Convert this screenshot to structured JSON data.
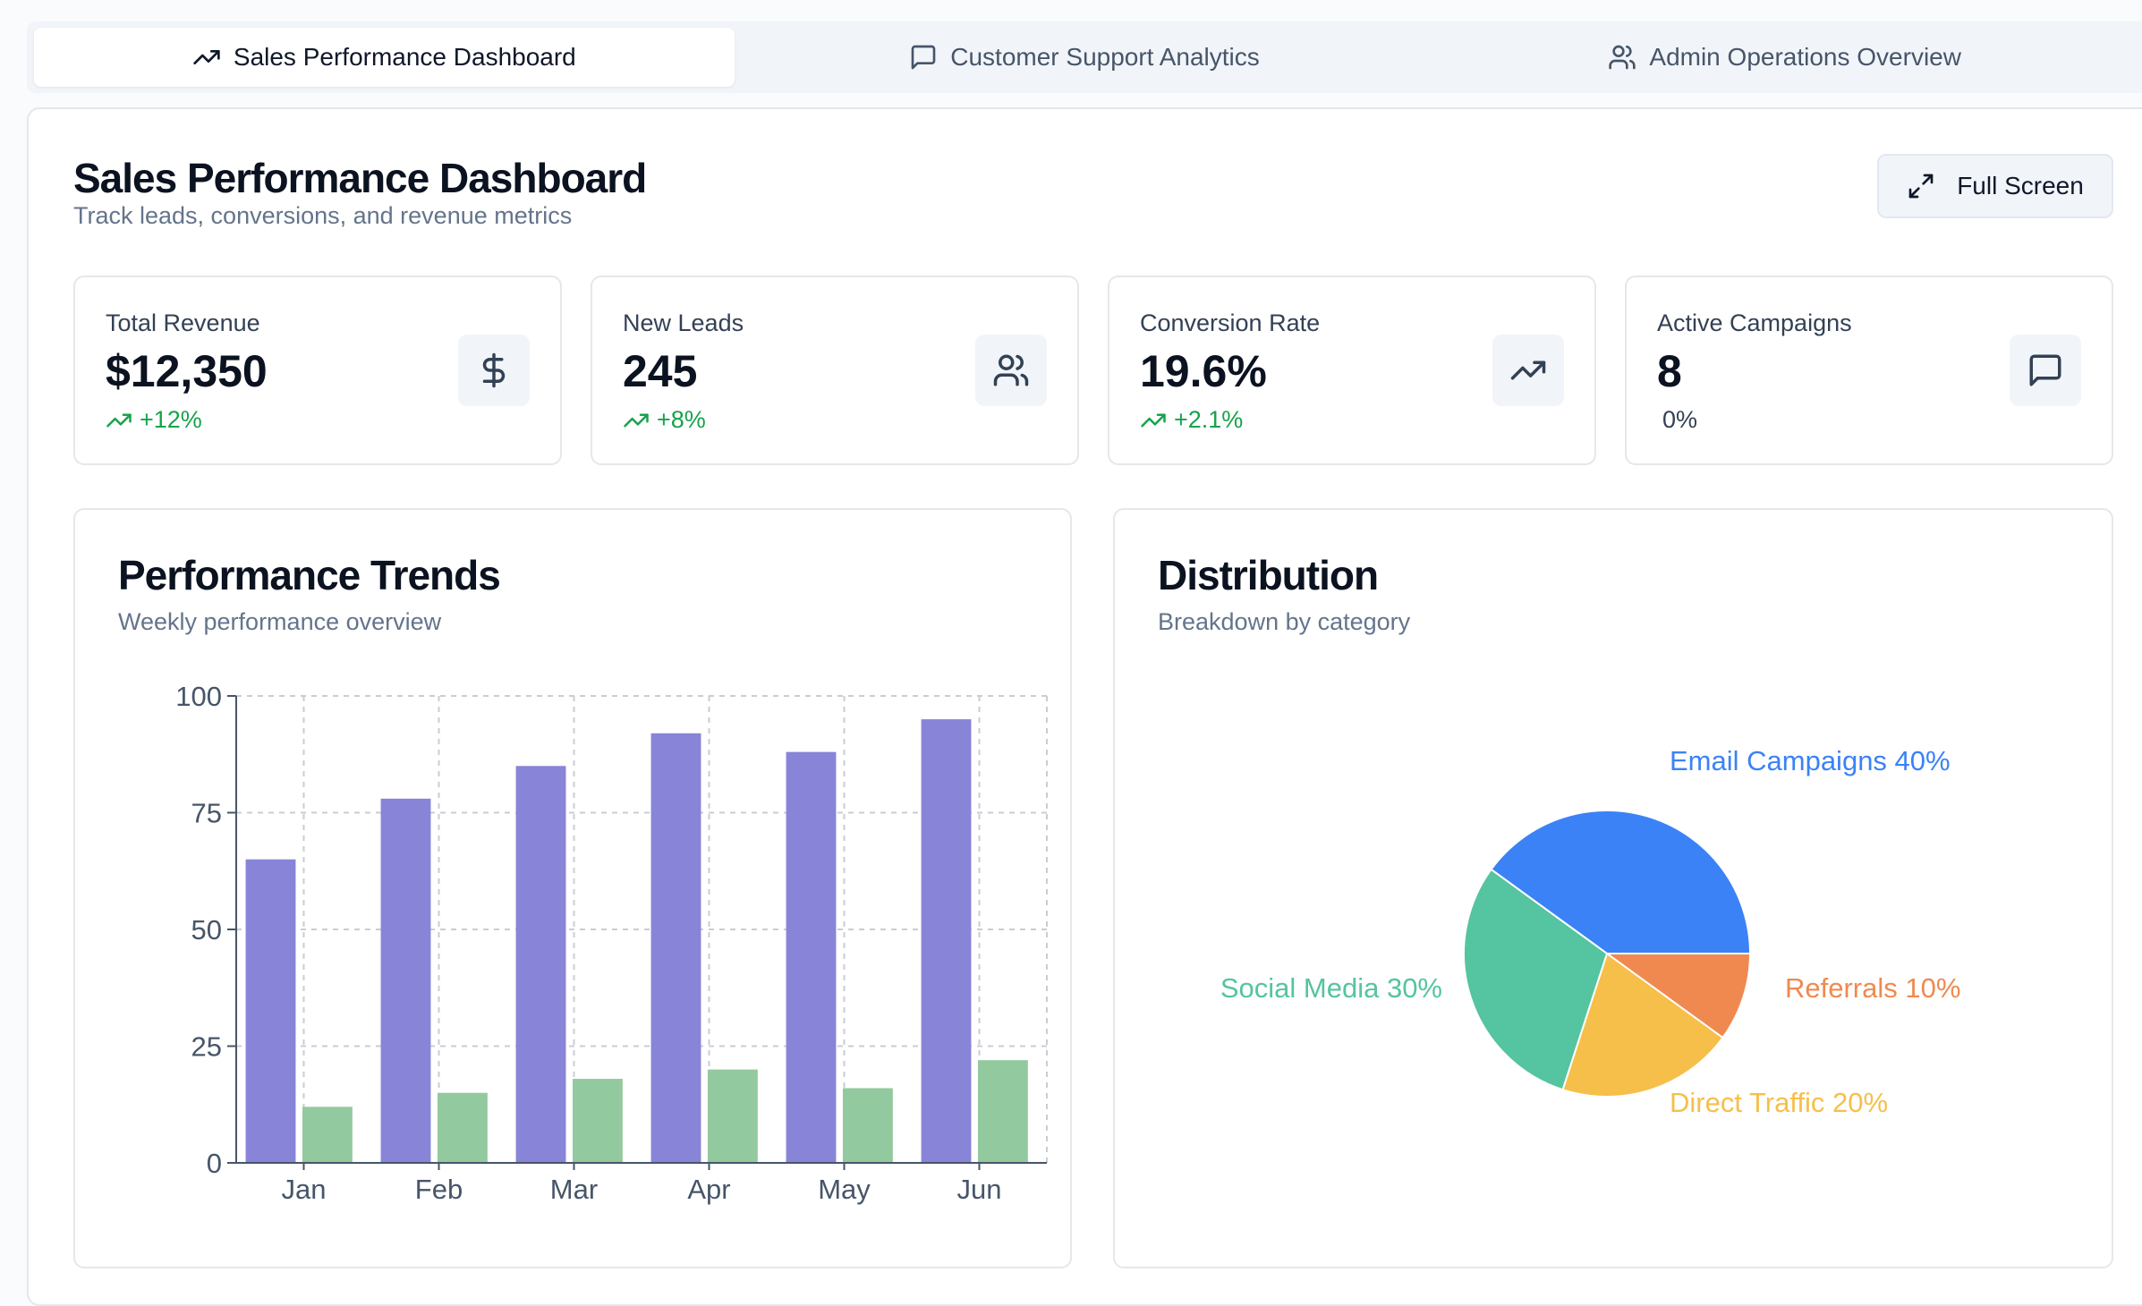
{
  "tabs": [
    {
      "label": "Sales Performance Dashboard",
      "icon": "trending-up-icon",
      "active": true
    },
    {
      "label": "Customer Support Analytics",
      "icon": "message-square-icon",
      "active": false
    },
    {
      "label": "Admin Operations Overview",
      "icon": "users-icon",
      "active": false
    }
  ],
  "header": {
    "title": "Sales Performance Dashboard",
    "subtitle": "Track leads, conversions, and revenue metrics",
    "fullscreen_label": "Full Screen"
  },
  "stats": [
    {
      "label": "Total Revenue",
      "value": "$12,350",
      "change": "+12%",
      "icon": "dollar-icon",
      "trend": "up"
    },
    {
      "label": "New Leads",
      "value": "245",
      "change": "+8%",
      "icon": "users-icon",
      "trend": "up"
    },
    {
      "label": "Conversion Rate",
      "value": "19.6%",
      "change": "+2.1%",
      "icon": "trending-up-icon",
      "trend": "up"
    },
    {
      "label": "Active Campaigns",
      "value": "8",
      "change": "0%",
      "icon": "message-square-icon",
      "trend": "neutral"
    }
  ],
  "trends": {
    "title": "Performance Trends",
    "subtitle": "Weekly performance overview"
  },
  "distribution": {
    "title": "Distribution",
    "subtitle": "Breakdown by category"
  },
  "colors": {
    "bar_primary": "#8884d8",
    "bar_secondary": "#93c99f",
    "positive": "#16a34a"
  },
  "chart_data": [
    {
      "type": "bar",
      "categories": [
        "Jan",
        "Feb",
        "Mar",
        "Apr",
        "May",
        "Jun"
      ],
      "series": [
        {
          "values": [
            65,
            78,
            85,
            92,
            88,
            95
          ],
          "color": "#8884d8"
        },
        {
          "values": [
            12,
            15,
            18,
            20,
            16,
            22
          ],
          "color": "#93c99f"
        }
      ],
      "ylim": [
        0,
        100
      ],
      "yticks": [
        0,
        25,
        50,
        75,
        100
      ],
      "grid": true
    },
    {
      "type": "pie",
      "slices": [
        {
          "label": "Email Campaigns 40%",
          "value": 40,
          "color": "#3b82f6"
        },
        {
          "label": "Referrals 10%",
          "value": 10,
          "color": "#f0894f"
        },
        {
          "label": "Direct Traffic 20%",
          "value": 20,
          "color": "#f6bf4a"
        },
        {
          "label": "Social Media 30%",
          "value": 30,
          "color": "#55c4a0"
        }
      ]
    }
  ]
}
